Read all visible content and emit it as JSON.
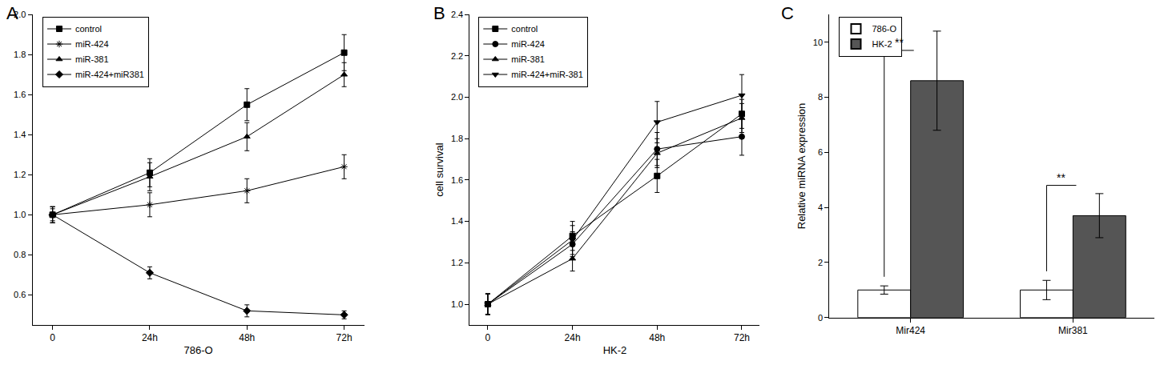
{
  "chart_data": [
    {
      "type": "line",
      "title": "A",
      "x_label": "786-O",
      "categories": [
        "0",
        "24h",
        "48h",
        "72h"
      ],
      "series": [
        {
          "name": "control",
          "color": "#000000",
          "marker": "square",
          "values": [
            1.0,
            1.21,
            1.55,
            1.81
          ],
          "errors": [
            0.04,
            0.07,
            0.08,
            0.09
          ]
        },
        {
          "name": "miR-424",
          "color": "#000000",
          "marker": "asterisk",
          "values": [
            1.0,
            1.05,
            1.12,
            1.24
          ],
          "errors": [
            0.04,
            0.06,
            0.06,
            0.06
          ]
        },
        {
          "name": "miR-381",
          "color": "#000000",
          "marker": "triangle-up",
          "values": [
            1.0,
            1.19,
            1.39,
            1.7
          ],
          "errors": [
            0.04,
            0.07,
            0.07,
            0.06
          ]
        },
        {
          "name": "miR-424+miR381",
          "color": "#000000",
          "marker": "diamond",
          "values": [
            1.0,
            0.71,
            0.52,
            0.5
          ],
          "errors": [
            0.03,
            0.03,
            0.03,
            0.02
          ]
        }
      ],
      "ylim": [
        0.45,
        2.0
      ],
      "yticks": [
        0.6,
        0.8,
        {
          "value": 1.0,
          "label": "1.0"
        },
        1.2,
        1.4,
        1.6,
        1.8,
        {
          "value": 2.0,
          "label": "2.0"
        }
      ],
      "legend": "top left",
      "grid": false
    },
    {
      "type": "line",
      "title": "B",
      "x_label": "HK-2",
      "y_label": "cell survival",
      "categories": [
        "0",
        "24h",
        "48h",
        "72h"
      ],
      "series": [
        {
          "name": "control",
          "color": "#000000",
          "marker": "square",
          "values": [
            1.0,
            1.33,
            1.62,
            1.92
          ],
          "errors": [
            0.05,
            0.07,
            0.08,
            0.07
          ]
        },
        {
          "name": "miR-424",
          "color": "#000000",
          "marker": "circle",
          "values": [
            1.0,
            1.29,
            1.75,
            1.81
          ],
          "errors": [
            0.05,
            0.06,
            0.08,
            0.09
          ]
        },
        {
          "name": "miR-381",
          "color": "#000000",
          "marker": "triangle-up",
          "values": [
            1.0,
            1.22,
            1.73,
            1.9
          ],
          "errors": [
            0.05,
            0.06,
            0.07,
            0.07
          ]
        },
        {
          "name": "miR-424+miR-381",
          "color": "#000000",
          "marker": "triangle-down",
          "values": [
            1.0,
            1.31,
            1.88,
            2.01
          ],
          "errors": [
            0.05,
            0.07,
            0.1,
            0.1
          ]
        }
      ],
      "ylim": [
        0.9,
        2.4
      ],
      "yticks": [
        {
          "value": 1.0,
          "label": "1.0"
        },
        1.2,
        1.4,
        1.6,
        1.8,
        {
          "value": 2.0,
          "label": "2.0"
        },
        2.2,
        2.4
      ],
      "legend": "top left",
      "grid": false
    },
    {
      "type": "bar",
      "title": "C",
      "y_label": "Relative miRNA expression",
      "categories": [
        "Mir424",
        "Mir381"
      ],
      "series": [
        {
          "name": "786-O",
          "color": "#ffffff",
          "values": [
            1.0,
            1.0
          ],
          "errors": [
            0.15,
            0.35
          ]
        },
        {
          "name": "HK-2",
          "color": "#555555",
          "values": [
            8.6,
            3.7
          ],
          "errors": [
            1.8,
            0.8
          ]
        }
      ],
      "significance": [
        "**",
        "**"
      ],
      "ylim": [
        0,
        11
      ],
      "yticks": [
        0,
        2,
        4,
        6,
        8,
        10
      ],
      "legend": "top left",
      "grid": false
    }
  ]
}
